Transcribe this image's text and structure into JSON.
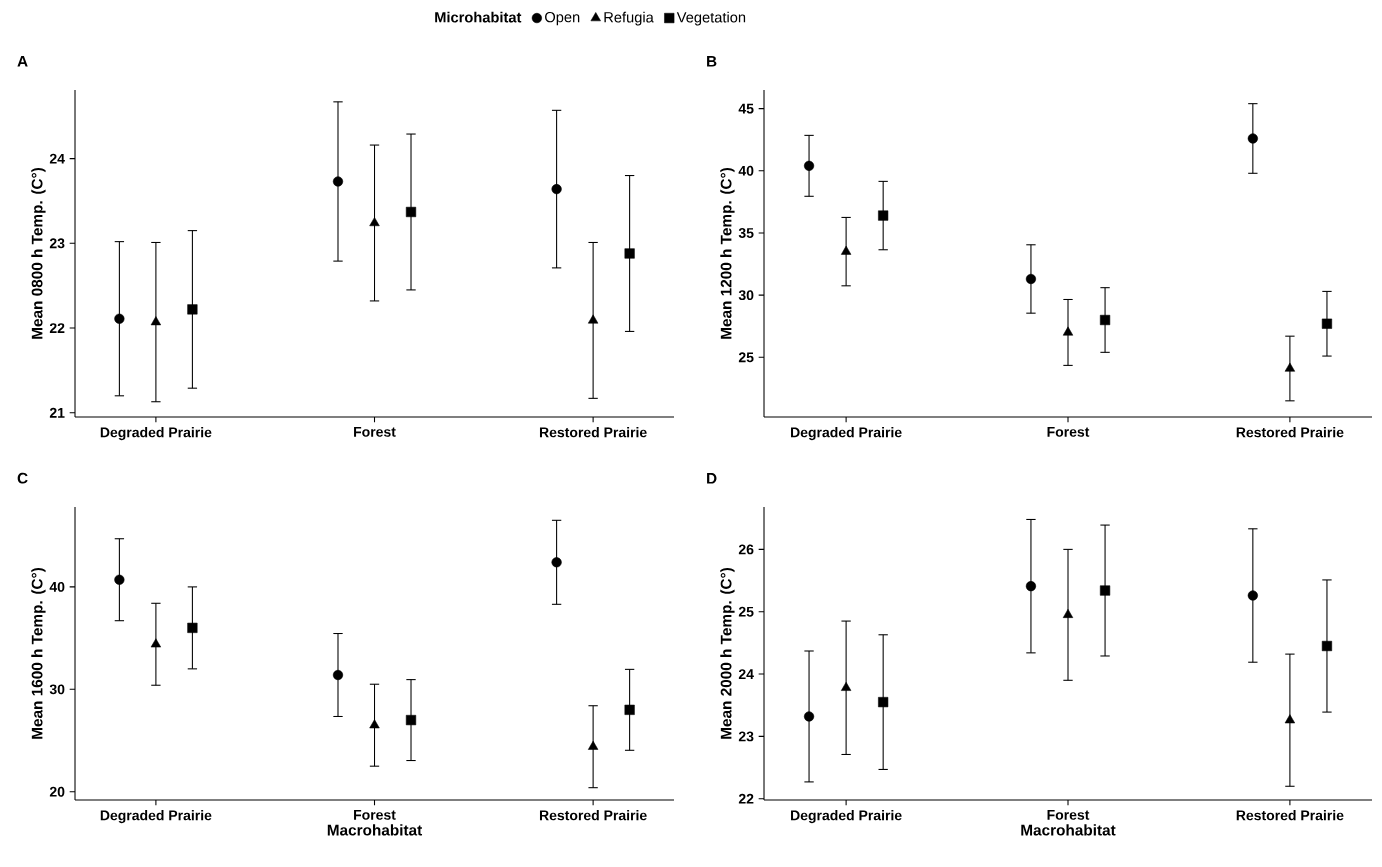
{
  "chart_data": [
    {
      "type": "scatter",
      "title": "A",
      "ylabel": "Mean 0800 h Temp. (C°)",
      "categories": [
        "Degraded Prairie",
        "Forest",
        "Restored Prairie"
      ],
      "ylim": [
        20.95,
        24.81
      ],
      "yticks": [
        21,
        22,
        23,
        24
      ],
      "legend": "top",
      "legend_title": "Microhabitat",
      "series": [
        {
          "name": "Open",
          "color": "#000000",
          "marker": "circle",
          "values": [
            22.11,
            23.73,
            23.64
          ],
          "errors": [
            0.91,
            0.94,
            0.93
          ]
        },
        {
          "name": "Refugia",
          "color": "#000000",
          "marker": "triangle",
          "values": [
            22.07,
            23.24,
            22.09
          ],
          "errors": [
            0.94,
            0.92,
            0.92
          ]
        },
        {
          "name": "Vegetation",
          "color": "#000000",
          "marker": "square",
          "values": [
            22.22,
            23.37,
            22.88
          ],
          "errors": [
            0.93,
            0.92,
            0.92
          ]
        }
      ]
    },
    {
      "type": "scatter",
      "title": "B",
      "ylabel": "Mean 1200 h Temp. (C°)",
      "categories": [
        "Degraded Prairie",
        "Forest",
        "Restored Prairie"
      ],
      "ylim": [
        20.2,
        46.5
      ],
      "yticks": [
        25,
        30,
        35,
        40,
        45
      ],
      "series": [
        {
          "color": "#000000",
          "marker": "circle",
          "values": [
            40.4,
            31.3,
            42.6
          ],
          "errors": [
            2.45,
            2.75,
            2.8
          ]
        },
        {
          "color": "#000000",
          "marker": "triangle",
          "values": [
            33.5,
            27.0,
            24.1
          ],
          "errors": [
            2.75,
            2.65,
            2.6
          ]
        },
        {
          "color": "#000000",
          "marker": "square",
          "values": [
            36.4,
            28.0,
            27.7
          ],
          "errors": [
            2.75,
            2.6,
            2.6
          ]
        }
      ]
    },
    {
      "type": "scatter",
      "title": "C",
      "xlabel": "Macrohabitat",
      "ylabel": "Mean 1600 h Temp. (C°)",
      "categories": [
        "Degraded Prairie",
        "Forest",
        "Restored Prairie"
      ],
      "ylim": [
        19.2,
        47.8
      ],
      "yticks": [
        20,
        30,
        40
      ],
      "series": [
        {
          "color": "#000000",
          "marker": "circle",
          "values": [
            40.7,
            31.4,
            42.4
          ],
          "errors": [
            4.0,
            4.05,
            4.1
          ]
        },
        {
          "color": "#000000",
          "marker": "triangle",
          "values": [
            34.4,
            26.5,
            24.4
          ],
          "errors": [
            4.0,
            4.0,
            4.0
          ]
        },
        {
          "color": "#000000",
          "marker": "square",
          "values": [
            36.0,
            27.0,
            28.0
          ],
          "errors": [
            4.0,
            3.95,
            3.95
          ]
        }
      ]
    },
    {
      "type": "scatter",
      "title": "D",
      "xlabel": "Macrohabitat",
      "ylabel": "Mean 2000 h Temp. (C°)",
      "categories": [
        "Degraded Prairie",
        "Forest",
        "Restored Prairie"
      ],
      "ylim": [
        21.98,
        26.68
      ],
      "yticks": [
        22,
        23,
        24,
        25,
        26
      ],
      "series": [
        {
          "color": "#000000",
          "marker": "circle",
          "values": [
            23.32,
            25.41,
            25.26
          ],
          "errors": [
            1.05,
            1.07,
            1.07
          ]
        },
        {
          "color": "#000000",
          "marker": "triangle",
          "values": [
            23.78,
            24.95,
            23.26
          ],
          "errors": [
            1.07,
            1.05,
            1.06
          ]
        },
        {
          "color": "#000000",
          "marker": "square",
          "values": [
            23.55,
            25.34,
            24.45
          ],
          "errors": [
            1.08,
            1.05,
            1.06
          ]
        }
      ]
    }
  ]
}
